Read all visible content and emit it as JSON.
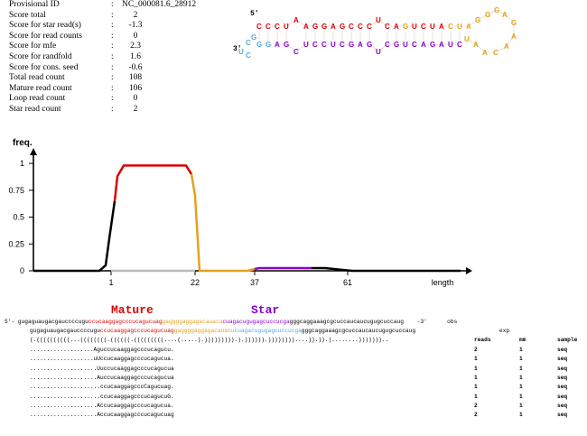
{
  "stats": [
    {
      "label": "Provisional ID",
      "value": "NC_000081.6_28912"
    },
    {
      "label": "Score total",
      "value": "2"
    },
    {
      "label": "Score for star read(s)",
      "value": "-1.3"
    },
    {
      "label": "Score for read counts",
      "value": "0"
    },
    {
      "label": "Score for mfe",
      "value": "2.3"
    },
    {
      "label": "Score for randfold",
      "value": "1.6"
    },
    {
      "label": "Score for cons. seed",
      "value": "-0.6"
    },
    {
      "label": "Total read count",
      "value": "108"
    },
    {
      "label": "Mature read count",
      "value": "106"
    },
    {
      "label": "Loop read count",
      "value": "0"
    },
    {
      "label": "Star read count",
      "value": "2"
    }
  ],
  "hairpin": {
    "five_prime": "5'",
    "three_prime": "3'"
  },
  "chart_data": {
    "type": "line",
    "ylabel": "freq.",
    "xlabel": "length",
    "yticks": [
      "0",
      "0.25",
      "0.5",
      "0.75",
      "1"
    ],
    "xticks": [
      "1",
      "22",
      "37",
      "61"
    ],
    "colors": {
      "mature": "#dd0000",
      "loop": "#e6a020",
      "star": "#8800cc",
      "flank": "#000000",
      "baseline": "#bbbbbb"
    }
  },
  "labels": {
    "mature": "Mature",
    "star": "Star"
  },
  "alignment": {
    "prefix": "5'-",
    "seq_pre": "gugaguaugacgauccccugu",
    "seq_mature": "ccucaaggagcccucagucuag",
    "seq_loop": "gaggggaggagacauacu",
    "seq_star": "cuagacugugagcuccucga",
    "seq_post": "gggcaggaaagcgcuccaucaucugugcuccaug",
    "suffix": "-3'",
    "obs": "obs",
    "exp_pre": "gugaguaugacgauccccugu",
    "exp_mature": "ccucaaggagcccucagucuag",
    "exp_loop": "gaggggaggagacauacu",
    "exp_star": "cuagacugugagcuccucga",
    "exp_post": "gggcaggaaagcgcuccaucaucugugcuccaug",
    "exp": "exp",
    "structure": "(.((((((((((...((((((((.((((((.(((((((((....(.....).))))))))).).)))))).))))))))....)).)).)........)))))))..",
    "headers": [
      "reads",
      "mm",
      "sample"
    ],
    "reads": [
      {
        "seq": "...................Aguccucaaggagcccucagucu.",
        "reads": "2",
        "mm": "1",
        "sample": "seq"
      },
      {
        "seq": "...................uUccucaaggagcccucagucua.",
        "reads": "1",
        "mm": "1",
        "sample": "seq"
      },
      {
        "seq": "....................Uuccucaaggagcccucagucua",
        "reads": "1",
        "mm": "1",
        "sample": "seq"
      },
      {
        "seq": "....................Auccucaaggagcccucagucua",
        "reads": "1",
        "mm": "1",
        "sample": "seq"
      },
      {
        "seq": ".....................ccucaaggagcccCagucuag.",
        "reads": "1",
        "mm": "1",
        "sample": "seq"
      },
      {
        "seq": ".....................ccucaaggagcccucagucuG.",
        "reads": "1",
        "mm": "1",
        "sample": "seq"
      },
      {
        "seq": "....................Accucaaggagcccucagucua.",
        "reads": "2",
        "mm": "1",
        "sample": "seq"
      },
      {
        "seq": "....................Accucaaggagcccucagucuag",
        "reads": "2",
        "mm": "1",
        "sample": "seq"
      }
    ]
  }
}
